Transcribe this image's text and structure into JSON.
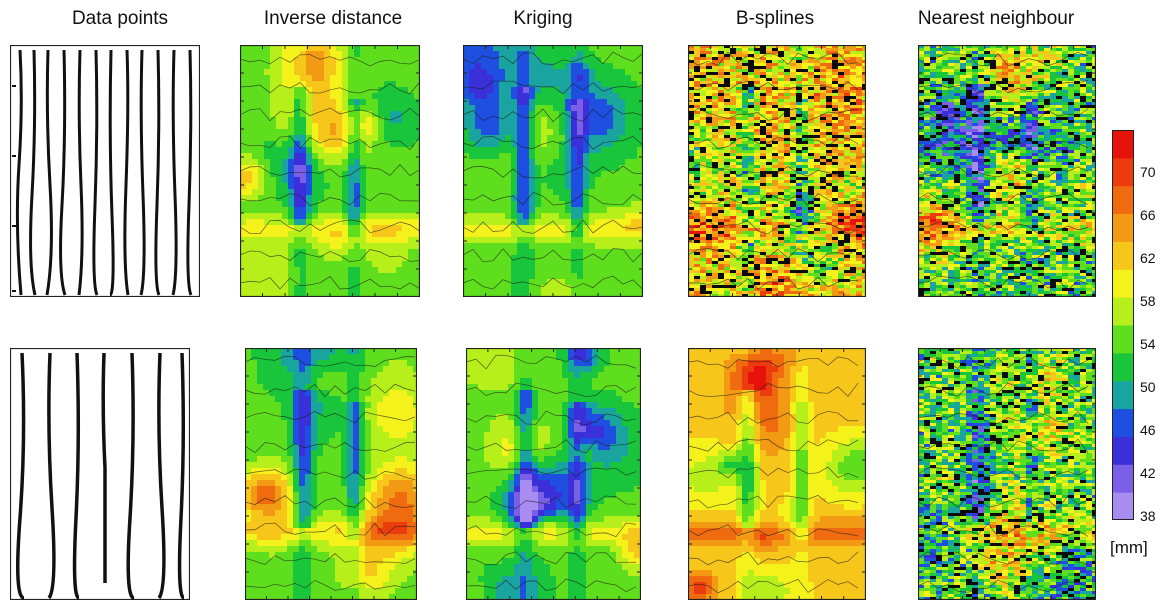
{
  "column_titles": [
    "Data points",
    "Inverse distance",
    "Kriging",
    "B-splines",
    "Nearest neighbour"
  ],
  "colorbar": {
    "ticks": [
      "70",
      "66",
      "62",
      "58",
      "54",
      "50",
      "46",
      "42",
      "38"
    ],
    "unit": "[mm]",
    "colors": [
      "#a98cf0",
      "#7b5fe6",
      "#3a2fd8",
      "#1e4fe0",
      "#1aa4a0",
      "#19c53a",
      "#5ede1c",
      "#b7ef1a",
      "#f4f21a",
      "#f7c61a",
      "#f29a14",
      "#f06a10",
      "#ec3b0d",
      "#e8120d"
    ]
  }
}
